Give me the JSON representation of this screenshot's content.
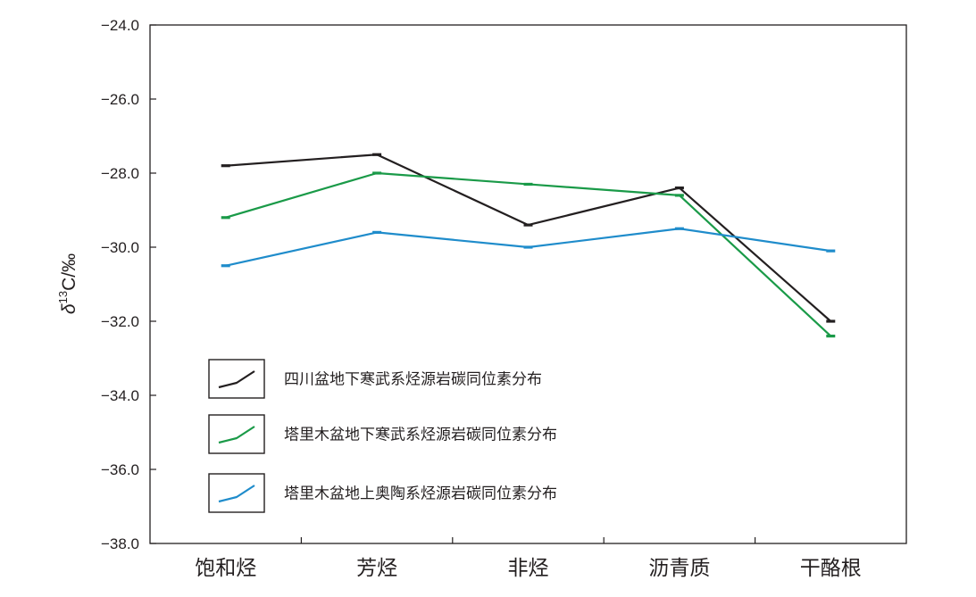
{
  "chart_data": {
    "type": "line",
    "categories": [
      "饱和烃",
      "芳烃",
      "非烃",
      "沥青质",
      "干酪根"
    ],
    "ylabel": {
      "prefix": "δ",
      "sup": "13",
      "suffix": "C/‰"
    },
    "xlabel": "",
    "ylim": [
      -38.0,
      -24.0
    ],
    "yticks": [
      -24.0,
      -26.0,
      -28.0,
      -30.0,
      -32.0,
      -34.0,
      -36.0,
      -38.0
    ],
    "ytick_labels": [
      "−24.0",
      "−26.0",
      "−28.0",
      "−30.0",
      "−32.0",
      "−34.0",
      "−36.0",
      "−38.0"
    ],
    "grid": false,
    "legend_position": "bottom-left",
    "series": [
      {
        "name": "四川盆地下寒武系烃源岩碳同位素分布",
        "color": "#231f20",
        "values": [
          -27.8,
          -27.5,
          -29.4,
          -28.4,
          -32.0
        ]
      },
      {
        "name": "塔里木盆地下寒武系烃源岩碳同位素分布",
        "color": "#1a9a48",
        "values": [
          -29.2,
          -28.0,
          -28.3,
          -28.6,
          -32.4
        ]
      },
      {
        "name": "塔里木盆地上奥陶系烃源岩碳同位素分布",
        "color": "#1f8ccb",
        "values": [
          -30.5,
          -29.6,
          -30.0,
          -29.5,
          -30.1
        ]
      }
    ]
  }
}
